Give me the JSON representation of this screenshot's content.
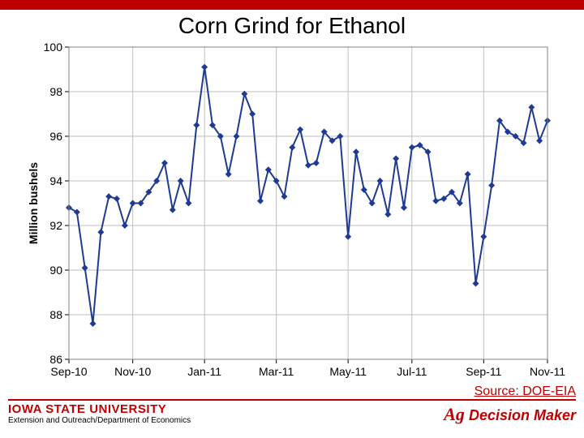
{
  "title": "Corn Grind for Ethanol",
  "source_label": "Source: DOE-EIA",
  "footer": {
    "institution": "IOWA STATE UNIVERSITY",
    "department": "Extension and Outreach/Department of Economics",
    "brand": "Ag Decision Maker"
  },
  "chart": {
    "type": "line",
    "ylabel": "Million bushels",
    "ylim": [
      86,
      100
    ],
    "ytick_step": 2,
    "xlim": [
      0,
      60
    ],
    "xticks": [
      {
        "pos": 0,
        "label": "Sep-10"
      },
      {
        "pos": 8,
        "label": "Nov-10"
      },
      {
        "pos": 17,
        "label": "Jan-11"
      },
      {
        "pos": 26,
        "label": "Mar-11"
      },
      {
        "pos": 35,
        "label": "May-11"
      },
      {
        "pos": 43,
        "label": "Jul-11"
      },
      {
        "pos": 52,
        "label": "Sep-11"
      },
      {
        "pos": 60,
        "label": "Nov-11"
      }
    ],
    "line_color": "#1f3a93",
    "marker_color": "#1f3a93",
    "line_width": 2,
    "marker_size": 4,
    "plot_background": "#ffffff",
    "grid_color": "#bfbfbf",
    "border_color": "#808080",
    "data": [
      92.8,
      92.6,
      90.1,
      87.6,
      91.7,
      93.3,
      93.2,
      92.0,
      93.0,
      93.0,
      93.5,
      94.0,
      94.8,
      92.7,
      94.0,
      93.0,
      96.5,
      99.1,
      96.5,
      96.0,
      94.3,
      96.0,
      97.9,
      97.0,
      93.1,
      94.5,
      94.0,
      93.3,
      95.5,
      96.3,
      94.7,
      94.8,
      96.2,
      95.8,
      96.0,
      91.5,
      95.3,
      93.6,
      93.0,
      94.0,
      92.5,
      95.0,
      92.8,
      95.5,
      95.6,
      95.3,
      93.1,
      93.2,
      93.5,
      93.0,
      94.3,
      89.4,
      91.5,
      93.8,
      96.7,
      96.2,
      96.0,
      95.7,
      97.3,
      95.8,
      96.7
    ]
  }
}
